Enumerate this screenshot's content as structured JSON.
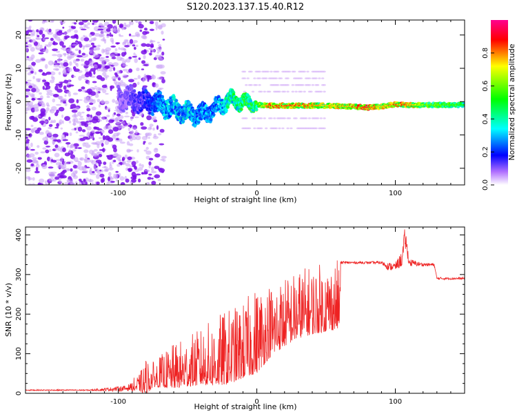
{
  "figure_title": "S120.2023.137.15.40.R12",
  "chart_data": [
    {
      "type": "heatmap",
      "xlabel": "Height of straight line (km)",
      "ylabel": "Frequency (Hz)",
      "xlim": [
        -167,
        150
      ],
      "ylim": [
        -25,
        24.5
      ],
      "x_ticks": [
        -100,
        0,
        100
      ],
      "y_ticks": [
        -20,
        -10,
        0,
        10,
        20
      ],
      "colorbar": {
        "label": "Normalized spectral amplitude",
        "range": [
          0,
          1
        ],
        "ticks": [
          0.0,
          0.2,
          0.4,
          0.6,
          0.8
        ],
        "colors": [
          "#ffffff",
          "#a000ff",
          "#0000ff",
          "#00ffff",
          "#00ff00",
          "#ffff00",
          "#ff0000",
          "#ff0080"
        ]
      },
      "ridge": {
        "description_points_x": [
          -100,
          -85,
          -70,
          -60,
          -50,
          -40,
          -30,
          -20,
          -10,
          0,
          10,
          30,
          50,
          70,
          80,
          90,
          100,
          110,
          120,
          140,
          150
        ],
        "frequency_y": [
          1.0,
          0.5,
          -1.0,
          -2.0,
          -3.5,
          -4.0,
          -2.0,
          0.5,
          0.0,
          -1.0,
          -1.2,
          -1.2,
          -1.2,
          -1.5,
          -1.8,
          -1.5,
          -0.8,
          -1.0,
          -1.0,
          -1.0,
          -1.0
        ],
        "amplitude": [
          0.1,
          0.15,
          0.3,
          0.35,
          0.35,
          0.3,
          0.3,
          0.45,
          0.5,
          0.55,
          0.8,
          0.8,
          0.7,
          0.75,
          0.85,
          0.7,
          0.8,
          0.75,
          0.6,
          0.55,
          0.5
        ]
      }
    },
    {
      "type": "line",
      "xlabel": "Height of straight line (km)",
      "ylabel": "SNR (10 * v/v)",
      "xlim": [
        -167,
        150
      ],
      "ylim": [
        0,
        420
      ],
      "x_ticks": [
        -100,
        0,
        100
      ],
      "y_ticks": [
        0,
        100,
        200,
        300,
        400
      ],
      "series": [
        {
          "color": "#ee2222",
          "x": [
            -167,
            -120,
            -95,
            -85,
            -80,
            -75,
            -70,
            -60,
            -50,
            -40,
            -30,
            -20,
            -10,
            0,
            10,
            20,
            30,
            40,
            50,
            60,
            60.5,
            70,
            80,
            90,
            95,
            100,
            105,
            107,
            110,
            120,
            128,
            130,
            140,
            150
          ],
          "y": [
            8,
            8,
            12,
            22,
            30,
            40,
            45,
            55,
            65,
            75,
            85,
            95,
            110,
            135,
            165,
            185,
            205,
            215,
            222,
            230,
            330,
            330,
            330,
            330,
            320,
            320,
            340,
            395,
            330,
            325,
            325,
            290,
            290,
            290
          ],
          "noise_amplitude": [
            3,
            3,
            15,
            25,
            60,
            40,
            50,
            70,
            80,
            90,
            110,
            120,
            120,
            140,
            120,
            110,
            110,
            110,
            110,
            110,
            8,
            6,
            6,
            8,
            20,
            20,
            40,
            60,
            20,
            8,
            8,
            6,
            6,
            6
          ]
        }
      ]
    }
  ]
}
